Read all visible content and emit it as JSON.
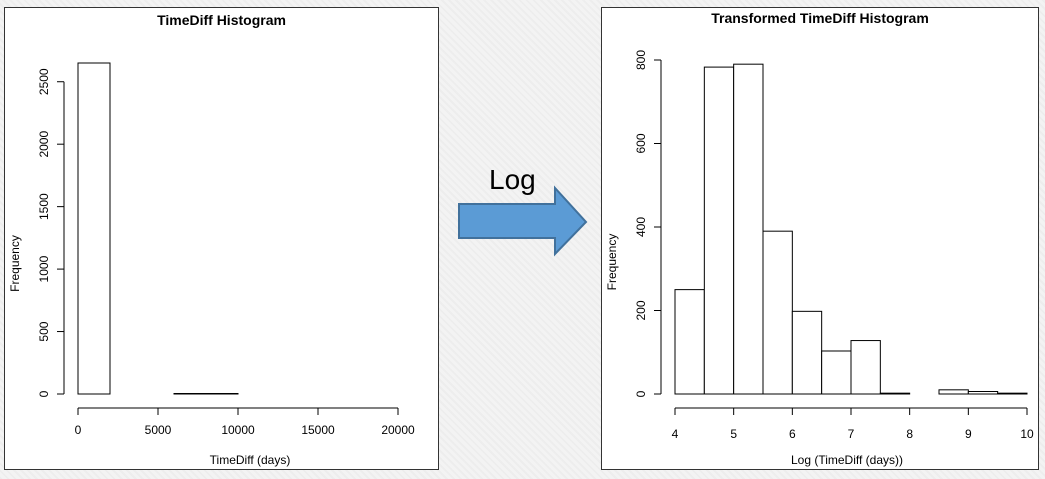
{
  "arrow": {
    "label": "Log",
    "fill_color": "#5b9bd5",
    "stroke_color": "#41719c"
  },
  "chart_data": [
    {
      "type": "bar",
      "title": "TimeDiff Histogram",
      "xlabel": "TimeDiff (days)",
      "ylabel": "Frequency",
      "bins": [
        {
          "x0": 0,
          "x1": 2000,
          "count": 2650
        },
        {
          "x0": 2000,
          "x1": 4000,
          "count": 0
        },
        {
          "x0": 4000,
          "x1": 6000,
          "count": 0
        },
        {
          "x0": 6000,
          "x1": 8000,
          "count": 4
        },
        {
          "x0": 8000,
          "x1": 10000,
          "count": 4
        },
        {
          "x0": 10000,
          "x1": 12000,
          "count": 0
        },
        {
          "x0": 12000,
          "x1": 14000,
          "count": 0
        },
        {
          "x0": 14000,
          "x1": 16000,
          "count": 0
        },
        {
          "x0": 16000,
          "x1": 18000,
          "count": 0
        },
        {
          "x0": 18000,
          "x1": 20000,
          "count": 0
        },
        {
          "x0": 20000,
          "x1": 22000,
          "count": 0
        }
      ],
      "xlim": [
        0,
        22000
      ],
      "ylim": [
        0,
        2650
      ],
      "xticks": [
        0,
        5000,
        10000,
        15000,
        20000
      ],
      "yticks": [
        0,
        500,
        1000,
        1500,
        2000,
        2500
      ],
      "grid": false,
      "bar_fill": "#ffffff",
      "bar_stroke": "#000000"
    },
    {
      "type": "bar",
      "title": "Transformed TimeDiff Histogram",
      "xlabel": "Log (TimeDiff (days))",
      "ylabel": "Frequency",
      "bins": [
        {
          "x0": 4.0,
          "x1": 4.5,
          "count": 250
        },
        {
          "x0": 4.5,
          "x1": 5.0,
          "count": 783
        },
        {
          "x0": 5.0,
          "x1": 5.5,
          "count": 790
        },
        {
          "x0": 5.5,
          "x1": 6.0,
          "count": 390
        },
        {
          "x0": 6.0,
          "x1": 6.5,
          "count": 198
        },
        {
          "x0": 6.5,
          "x1": 7.0,
          "count": 103
        },
        {
          "x0": 7.0,
          "x1": 7.5,
          "count": 128
        },
        {
          "x0": 7.5,
          "x1": 8.0,
          "count": 2
        },
        {
          "x0": 8.0,
          "x1": 8.5,
          "count": 0
        },
        {
          "x0": 8.5,
          "x1": 9.0,
          "count": 10
        },
        {
          "x0": 9.0,
          "x1": 9.5,
          "count": 6
        },
        {
          "x0": 9.5,
          "x1": 10.0,
          "count": 2
        }
      ],
      "xlim": [
        4,
        10
      ],
      "ylim": [
        0,
        800
      ],
      "xticks": [
        4,
        5,
        6,
        7,
        8,
        9,
        10
      ],
      "yticks": [
        0,
        200,
        400,
        600,
        800
      ],
      "grid": false,
      "bar_fill": "#ffffff",
      "bar_stroke": "#000000"
    }
  ]
}
